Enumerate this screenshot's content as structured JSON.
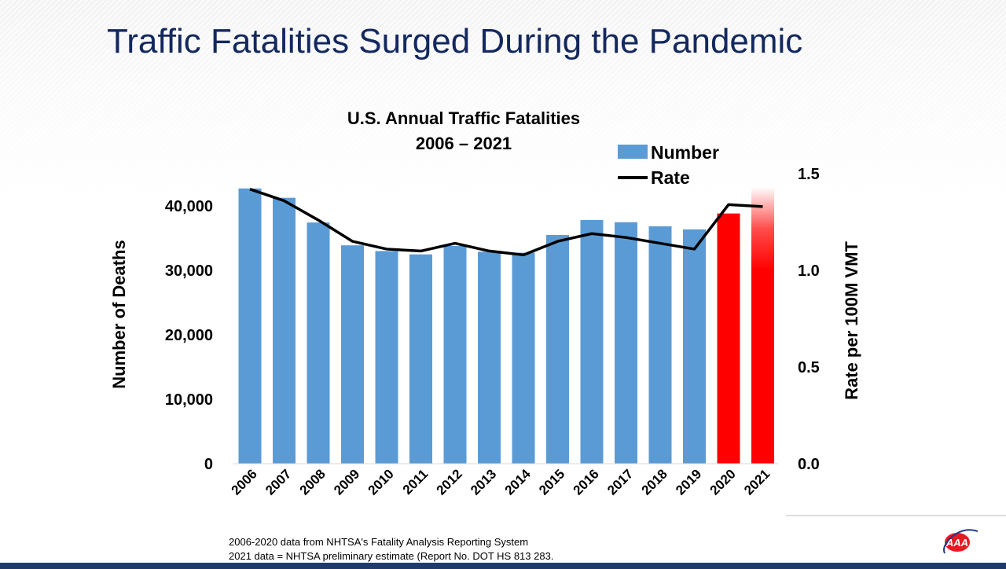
{
  "slide": {
    "title": "Traffic Fatalities Surged During the Pandemic",
    "notes": [
      "2006-2020 data from NHTSA's Fatality Analysis Reporting System",
      "2021 data = NHTSA preliminary estimate (Report No. DOT HS 813 283."
    ],
    "logo_text": "AAA"
  },
  "chart_data": {
    "type": "bar",
    "title": "U.S. Annual Traffic Fatalities",
    "subtitle": "2006 – 2021",
    "categories": [
      "2006",
      "2007",
      "2008",
      "2009",
      "2010",
      "2011",
      "2012",
      "2013",
      "2014",
      "2015",
      "2016",
      "2017",
      "2018",
      "2019",
      "2020",
      "2021"
    ],
    "series": [
      {
        "name": "Number",
        "type": "bar",
        "axis": "left",
        "values": [
          42708,
          41259,
          37423,
          33883,
          32999,
          32479,
          33782,
          32893,
          32744,
          35484,
          37806,
          37473,
          36835,
          36355,
          38824,
          42915
        ],
        "color": "#5b9bd5",
        "highlight_color": "#ff0000",
        "highlight_categories": [
          "2020",
          "2021"
        ]
      },
      {
        "name": "Rate",
        "type": "line",
        "axis": "right",
        "values": [
          1.42,
          1.36,
          1.26,
          1.15,
          1.11,
          1.1,
          1.14,
          1.1,
          1.08,
          1.15,
          1.19,
          1.17,
          1.14,
          1.11,
          1.34,
          1.33
        ],
        "color": "#000000"
      }
    ],
    "ylabel": "Number of Deaths",
    "ylim": [
      0,
      45000
    ],
    "yticks": [
      "0",
      "10,000",
      "20,000",
      "30,000",
      "40,000"
    ],
    "y2label": "Rate per 100M VMT",
    "y2lim": [
      0,
      1.5
    ],
    "y2ticks": [
      "0.0",
      "0.5",
      "1.0",
      "1.5"
    ],
    "grid": false,
    "legend": "top-right"
  }
}
